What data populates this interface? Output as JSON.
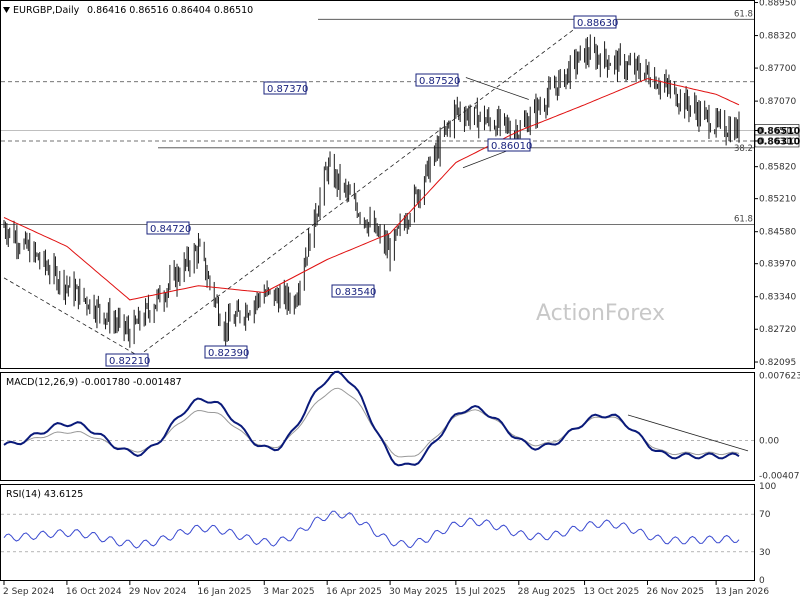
{
  "header": {
    "symbol": "EURGBP,Daily",
    "ohlc": "0.86416 0.86516 0.86404 0.86510"
  },
  "watermark": "ActionForex",
  "colors": {
    "candle": "#1a1a1a",
    "ma": "#e01010",
    "macd": "#0a1a7a",
    "signal": "#9a9a9a",
    "rsi": "#3a4ad0",
    "annotation_box": "#1a237e",
    "price_tag_bg": "#ffffff"
  },
  "chart_data": [
    {
      "type": "candlestick",
      "panel": "price",
      "title": "EURGBP,Daily",
      "ylim": [
        0.82,
        0.8896
      ],
      "y_ticks": [
        0.8895,
        0.8832,
        0.877,
        0.8707,
        0.8651,
        0.8631,
        0.8582,
        0.8521,
        0.8458,
        0.8397,
        0.8334,
        0.8272,
        0.82095
      ],
      "y_tick_labels": [
        "0.88950",
        "0.88320",
        "0.87700",
        "0.87070",
        "0.86510",
        "0.86310",
        "0.85820",
        "0.85210",
        "0.84580",
        "0.83970",
        "0.83340",
        "0.82720",
        "0.82095"
      ],
      "highlighted_prices": [
        {
          "label": "0.86510",
          "value": 0.8651
        },
        {
          "label": "0.86310",
          "value": 0.8631
        }
      ],
      "x_ticks": [
        "2 Sep 2024",
        "16 Oct 2024",
        "29 Nov 2024",
        "16 Jan 2025",
        "3 Mar 2025",
        "16 Apr 2025",
        "30 May 2025",
        "15 Jul 2025",
        "28 Aug 2025",
        "13 Oct 2025",
        "26 Nov 2025",
        "13 Jan 2026"
      ],
      "annotations": [
        {
          "label": "0.82210",
          "value": 0.8221,
          "date": "Dec 2024"
        },
        {
          "label": "0.84720",
          "value": 0.8472,
          "date": "Jan 2025"
        },
        {
          "label": "0.82390",
          "value": 0.8239,
          "date": "Feb 2025"
        },
        {
          "label": "0.87370",
          "value": 0.8737,
          "date": "Apr 2025"
        },
        {
          "label": "0.83540",
          "value": 0.8354,
          "date": "May 2025"
        },
        {
          "label": "0.87520",
          "value": 0.8752,
          "date": "Jul 2025"
        },
        {
          "label": "0.86010",
          "value": 0.8601,
          "date": "Aug 2025"
        },
        {
          "label": "0.88630",
          "value": 0.8863,
          "date": "Oct 2025"
        }
      ],
      "fib_labels": [
        {
          "label": "61.8",
          "value": 0.8472
        },
        {
          "label": "61.8",
          "value": 0.8863
        },
        {
          "label": "38.2",
          "value": 0.8618
        }
      ],
      "horizontal_lines": [
        0.8744,
        0.8651,
        0.8631,
        0.8618,
        0.8472,
        0.8863
      ],
      "close_path": [
        [
          "2 Sep 2024",
          0.8468
        ],
        [
          "16 Oct 2024",
          0.8355
        ],
        [
          "29 Nov 2024",
          0.8265
        ],
        [
          "16 Jan 2025",
          0.8425
        ],
        [
          "3 Feb 2025",
          0.8275
        ],
        [
          "3 Mar 2025",
          0.834
        ],
        [
          "24 Mar 2025",
          0.8325
        ],
        [
          "16 Apr 2025",
          0.858
        ],
        [
          "30 May 2025",
          0.842
        ],
        [
          "15 Jul 2025",
          0.869
        ],
        [
          "28 Aug 2025",
          0.865
        ],
        [
          "13 Oct 2025",
          0.88
        ],
        [
          "26 Nov 2025",
          0.876
        ],
        [
          "13 Jan 2026",
          0.866
        ],
        [
          "29 Jan 2026",
          0.8651
        ]
      ],
      "ma_path": [
        [
          "2 Sep 2024",
          0.8485
        ],
        [
          "16 Oct 2024",
          0.843
        ],
        [
          "29 Nov 2024",
          0.8328
        ],
        [
          "16 Jan 2025",
          0.8355
        ],
        [
          "3 Mar 2025",
          0.8342
        ],
        [
          "16 Apr 2025",
          0.8405
        ],
        [
          "30 May 2025",
          0.8455
        ],
        [
          "15 Jul 2025",
          0.859
        ],
        [
          "28 Aug 2025",
          0.865
        ],
        [
          "13 Oct 2025",
          0.87
        ],
        [
          "26 Nov 2025",
          0.875
        ],
        [
          "13 Jan 2026",
          0.872
        ],
        [
          "29 Jan 2026",
          0.87
        ]
      ]
    },
    {
      "type": "line",
      "panel": "macd",
      "title": "MACD(12,26,9) -0.001780 -0.001487",
      "ylim": [
        -0.0045,
        0.0078
      ],
      "y_ticks": [
        0.007623,
        0.0,
        -0.004073
      ],
      "y_tick_labels": [
        "0.007623",
        "0.00",
        "-0.004073"
      ],
      "series": [
        {
          "values": [
            -0.0005,
            0.002,
            -0.0015,
            0.0048,
            -0.001,
            0.0078,
            -0.003,
            0.0038,
            -0.0008,
            0.003,
            -0.0018,
            -0.0018
          ]
        },
        {
          "values": [
            -0.0004,
            0.001,
            -0.0012,
            0.0035,
            -0.0008,
            0.006,
            -0.002,
            0.0035,
            -0.0005,
            0.0028,
            -0.0015,
            -0.0015
          ]
        }
      ]
    },
    {
      "type": "line",
      "panel": "rsi",
      "title": "RSI(14) 43.6125",
      "ylim": [
        0,
        100
      ],
      "y_ticks": [
        100,
        70,
        30,
        0
      ],
      "y_tick_labels": [
        "100",
        "70",
        "30",
        "0"
      ],
      "series": [
        {
          "values": [
            45,
            50,
            38,
            55,
            40,
            70,
            38,
            62,
            46,
            60,
            42,
            43.6
          ]
        }
      ]
    }
  ]
}
